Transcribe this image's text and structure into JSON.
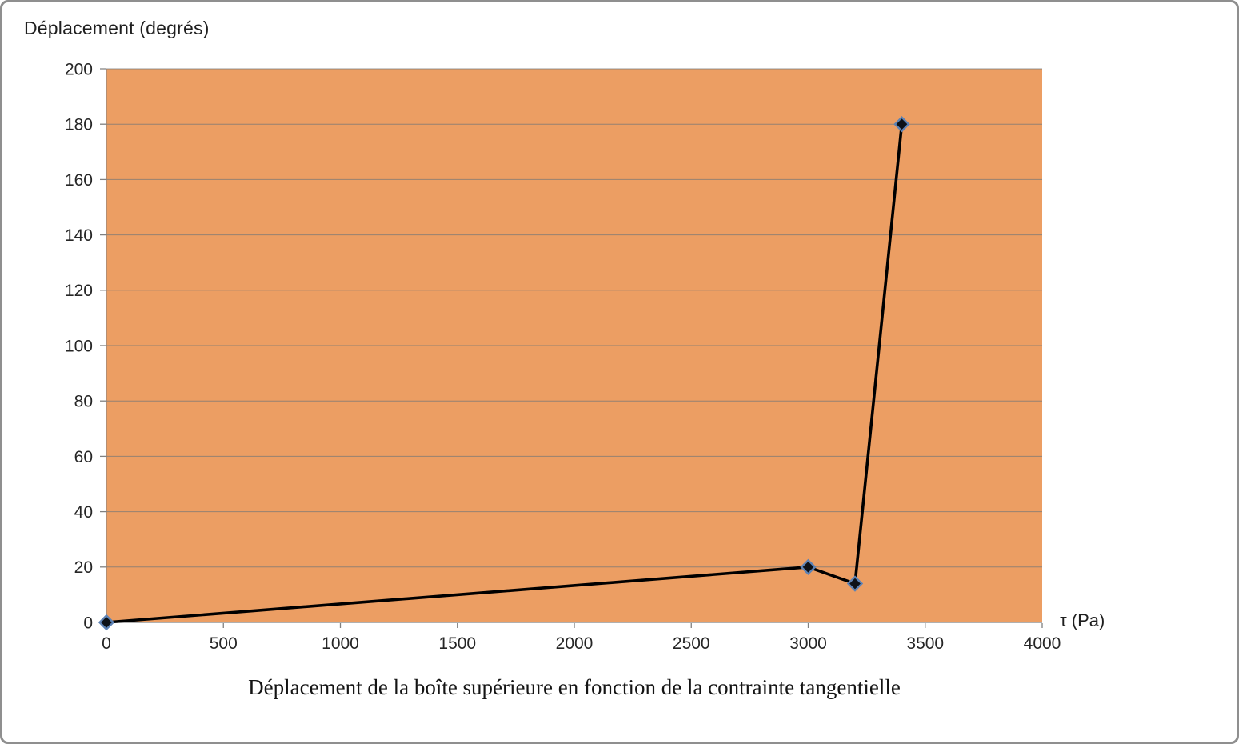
{
  "page": {
    "background": "#ffffff",
    "frame_border_color": "#8f8f8f"
  },
  "chart_data": {
    "type": "line",
    "title": "Déplacement de la boîte supérieure en fonction de la contrainte tangentielle",
    "ylabel": "Déplacement (degrés)",
    "xlabel": "τ (Pa)",
    "xlim": [
      0,
      4000
    ],
    "ylim": [
      0,
      200
    ],
    "xticks": [
      0,
      500,
      1000,
      1500,
      2000,
      2500,
      3000,
      3500,
      4000
    ],
    "yticks": [
      0,
      20,
      40,
      60,
      80,
      100,
      120,
      140,
      160,
      180,
      200
    ],
    "points": [
      [
        0,
        0
      ],
      [
        3000,
        20
      ],
      [
        3200,
        14
      ],
      [
        3400,
        180
      ]
    ],
    "grid": "horizontal",
    "legend_position": "none",
    "colors": {
      "plot_bg": "#EC9E63",
      "gridline": "#787878",
      "axis": "#808080",
      "series_line": "#000000",
      "marker_fill": "#0d1117",
      "marker_stroke": "#5d82b4",
      "tick_text": "#262626"
    }
  }
}
